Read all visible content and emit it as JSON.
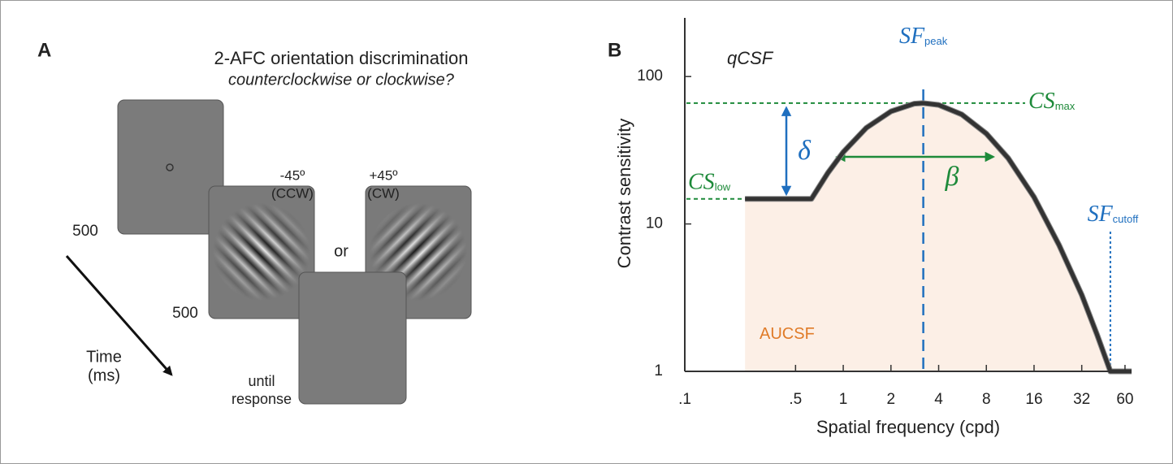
{
  "panel_a": {
    "label": "A",
    "title": "2-AFC orientation discrimination",
    "subtitle": "counterclockwise or clockwise?",
    "stimuli": [
      {
        "angle": "-45º",
        "direction": "(CCW)"
      },
      {
        "angle": "+45º",
        "direction": "(CW)"
      }
    ],
    "or": "or",
    "durations": [
      "500",
      "500"
    ],
    "response": [
      "until",
      "response"
    ],
    "time_axis": [
      "Time",
      "(ms)"
    ]
  },
  "panel_b": {
    "label": "B"
  },
  "chart_data": {
    "type": "line",
    "xlabel": "Spatial frequency (cpd)",
    "ylabel": "Contrast sensitivity",
    "x": [
      0.24,
      0.63,
      0.8,
      1,
      1.4,
      2,
      2.8,
      3.2,
      4,
      5.6,
      8,
      11,
      16,
      23,
      32,
      40,
      48.5,
      66
    ],
    "series": [
      {
        "name": "qCSF",
        "color": "#333333",
        "values": [
          14.8,
          14.8,
          22.2,
          30.7,
          44.9,
          58,
          65.4,
          66,
          64.2,
          55.3,
          41,
          27.9,
          15.2,
          7.2,
          3.3,
          1.77,
          1,
          1
        ]
      }
    ],
    "xscale": "log",
    "yscale": "log",
    "xlim": [
      0.1,
      66
    ],
    "ylim": [
      1,
      250
    ],
    "xticks": [
      {
        "value": 0.1,
        "label": ".1"
      },
      {
        "value": 0.5,
        "label": ".5"
      },
      1,
      2,
      4,
      8,
      16,
      32,
      60
    ],
    "yticks": [
      1,
      10,
      100
    ],
    "area_color": "#fcefe6",
    "annotations": [
      {
        "text": "qCSF"
      },
      {
        "text": "SF",
        "sub": "peak"
      },
      {
        "text": "CS",
        "sub": "max"
      },
      {
        "text": "CS",
        "sub": "low"
      },
      {
        "text": "δ"
      },
      {
        "text": "β"
      },
      {
        "text": "SF",
        "sub": "cutoff"
      },
      {
        "text": "AUCSF"
      }
    ]
  }
}
